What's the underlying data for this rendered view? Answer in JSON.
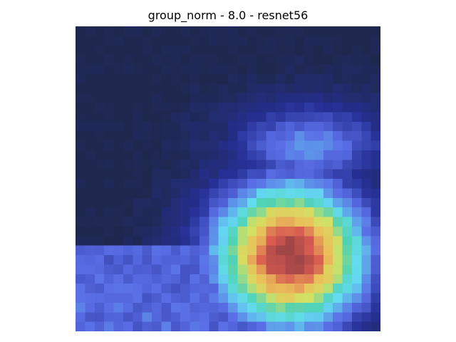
{
  "figure": {
    "title": "group_norm - 8.0 - resnet56"
  },
  "image": {
    "description_colors": {
      "background_base": "#1d2a4e",
      "cool_region": "#4a56c8",
      "mid_cyan": "#5fe6e0",
      "warm_yellow": "#e8e060",
      "hot_core": "#c84848"
    }
  }
}
